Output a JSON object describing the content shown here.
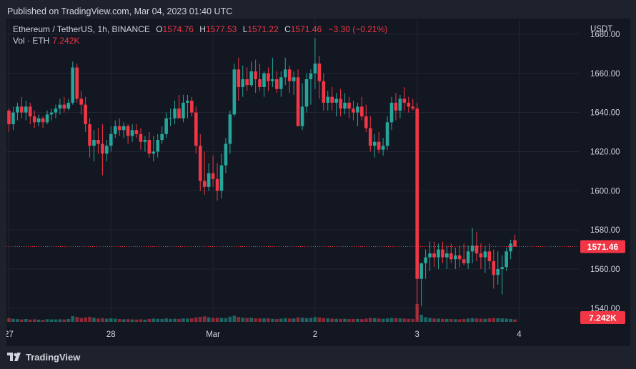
{
  "header": {
    "published": "Published on TradingView.com, Mar 04, 2023 01:40 UTC"
  },
  "legend": {
    "symbol": "Ethereum / TetherUS, 1h, BINANCE",
    "open_key": "O",
    "open": "1574.76",
    "high_key": "H",
    "high": "1577.53",
    "low_key": "L",
    "low": "1571.22",
    "close_key": "C",
    "close": "1571.46",
    "change": "−3.30 (−0.21%)",
    "vol_label": "Vol · ETH",
    "vol_value": "7.242K"
  },
  "footer": {
    "brand": "TradingView"
  },
  "colors": {
    "background": "#131722",
    "up": "#26a69a",
    "down": "#f23645",
    "grid": "#232632",
    "label_price_bg": "#f23645"
  },
  "chart_data": {
    "type": "candlestick",
    "title": "Ethereum / TetherUS, 1h, BINANCE",
    "y_axis_label": "USDT",
    "ylim": [
      1533,
      1688
    ],
    "y_ticks": [
      1540,
      1560,
      1580,
      1600,
      1620,
      1640,
      1660,
      1680
    ],
    "y_tick_labels": [
      "1540.00",
      "1560.00",
      "1580.00",
      "1600.00",
      "1620.00",
      "1640.00",
      "1660.00",
      "1680.00"
    ],
    "x_ticks": [
      {
        "label": "27",
        "index": 0
      },
      {
        "label": "28",
        "index": 24
      },
      {
        "label": "Mar",
        "index": 48
      },
      {
        "label": "2",
        "index": 72
      },
      {
        "label": "3",
        "index": 96
      },
      {
        "label": "4",
        "index": 120
      }
    ],
    "last_price": 1571.46,
    "last_price_label": "1571.46",
    "last_volume_label": "7.242K",
    "grid": true,
    "ohlcv": [
      [
        1641,
        1642,
        1630,
        1634,
        58
      ],
      [
        1634,
        1643,
        1631,
        1640,
        48
      ],
      [
        1640,
        1645,
        1636,
        1643,
        42
      ],
      [
        1643,
        1648,
        1637,
        1640,
        38
      ],
      [
        1640,
        1646,
        1636,
        1643,
        44
      ],
      [
        1643,
        1645,
        1634,
        1638,
        36
      ],
      [
        1638,
        1641,
        1632,
        1635,
        40
      ],
      [
        1635,
        1639,
        1633,
        1637,
        35
      ],
      [
        1637,
        1638,
        1632,
        1635,
        32
      ],
      [
        1635,
        1641,
        1634,
        1639,
        41
      ],
      [
        1639,
        1642,
        1636,
        1640,
        38
      ],
      [
        1640,
        1644,
        1637,
        1642,
        39
      ],
      [
        1642,
        1647,
        1639,
        1644,
        40
      ],
      [
        1644,
        1648,
        1640,
        1642,
        38
      ],
      [
        1642,
        1647,
        1641,
        1645,
        45
      ],
      [
        1645,
        1666,
        1644,
        1663,
        88
      ],
      [
        1663,
        1665,
        1645,
        1647,
        74
      ],
      [
        1647,
        1651,
        1639,
        1644,
        60
      ],
      [
        1644,
        1648,
        1630,
        1634,
        70
      ],
      [
        1634,
        1637,
        1617,
        1623,
        78
      ],
      [
        1623,
        1631,
        1615,
        1626,
        64
      ],
      [
        1626,
        1632,
        1619,
        1624,
        52
      ],
      [
        1624,
        1634,
        1608,
        1619,
        60
      ],
      [
        1619,
        1626,
        1615,
        1623,
        49
      ],
      [
        1623,
        1633,
        1620,
        1629,
        55
      ],
      [
        1629,
        1636,
        1627,
        1633,
        50
      ],
      [
        1633,
        1637,
        1628,
        1631,
        44
      ],
      [
        1631,
        1635,
        1627,
        1633,
        40
      ],
      [
        1633,
        1634,
        1624,
        1628,
        42
      ],
      [
        1628,
        1634,
        1625,
        1631,
        38
      ],
      [
        1631,
        1634,
        1627,
        1629,
        37
      ],
      [
        1629,
        1632,
        1621,
        1625,
        40
      ],
      [
        1625,
        1628,
        1620,
        1626,
        35
      ],
      [
        1626,
        1630,
        1617,
        1619,
        45
      ],
      [
        1619,
        1628,
        1615,
        1620,
        52
      ],
      [
        1620,
        1629,
        1617,
        1626,
        47
      ],
      [
        1626,
        1633,
        1624,
        1629,
        44
      ],
      [
        1629,
        1640,
        1627,
        1637,
        53
      ],
      [
        1637,
        1642,
        1633,
        1637,
        46
      ],
      [
        1637,
        1646,
        1634,
        1642,
        48
      ],
      [
        1642,
        1649,
        1638,
        1637,
        45
      ],
      [
        1637,
        1649,
        1635,
        1645,
        54
      ],
      [
        1645,
        1649,
        1637,
        1646,
        50
      ],
      [
        1646,
        1648,
        1638,
        1640,
        56
      ],
      [
        1640,
        1643,
        1619,
        1623,
        68
      ],
      [
        1623,
        1629,
        1600,
        1605,
        77
      ],
      [
        1605,
        1620,
        1598,
        1602,
        85
      ],
      [
        1602,
        1614,
        1600,
        1609,
        70
      ],
      [
        1609,
        1618,
        1602,
        1606,
        62
      ],
      [
        1606,
        1614,
        1595,
        1600,
        66
      ],
      [
        1600,
        1619,
        1596,
        1613,
        60
      ],
      [
        1613,
        1627,
        1609,
        1624,
        58
      ],
      [
        1624,
        1641,
        1619,
        1639,
        80
      ],
      [
        1639,
        1665,
        1638,
        1662,
        95
      ],
      [
        1662,
        1668,
        1646,
        1653,
        75
      ],
      [
        1653,
        1664,
        1648,
        1657,
        64
      ],
      [
        1657,
        1663,
        1651,
        1654,
        60
      ],
      [
        1654,
        1666,
        1653,
        1661,
        65
      ],
      [
        1661,
        1667,
        1650,
        1657,
        55
      ],
      [
        1657,
        1665,
        1651,
        1653,
        52
      ],
      [
        1653,
        1661,
        1648,
        1660,
        54
      ],
      [
        1660,
        1663,
        1651,
        1656,
        56
      ],
      [
        1656,
        1668,
        1653,
        1657,
        47
      ],
      [
        1657,
        1661,
        1650,
        1652,
        43
      ],
      [
        1652,
        1661,
        1648,
        1658,
        50
      ],
      [
        1658,
        1668,
        1654,
        1662,
        57
      ],
      [
        1662,
        1664,
        1650,
        1656,
        52
      ],
      [
        1656,
        1661,
        1649,
        1658,
        53
      ],
      [
        1658,
        1662,
        1647,
        1633,
        70
      ],
      [
        1633,
        1655,
        1631,
        1643,
        63
      ],
      [
        1643,
        1660,
        1640,
        1657,
        58
      ],
      [
        1657,
        1662,
        1644,
        1660,
        60
      ],
      [
        1660,
        1678,
        1652,
        1665,
        74
      ],
      [
        1665,
        1669,
        1647,
        1656,
        68
      ],
      [
        1656,
        1660,
        1641,
        1645,
        60
      ],
      [
        1645,
        1651,
        1641,
        1648,
        55
      ],
      [
        1648,
        1653,
        1641,
        1645,
        50
      ],
      [
        1645,
        1650,
        1638,
        1647,
        47
      ],
      [
        1647,
        1652,
        1638,
        1642,
        46
      ],
      [
        1642,
        1650,
        1639,
        1645,
        48
      ],
      [
        1645,
        1648,
        1637,
        1642,
        43
      ],
      [
        1642,
        1646,
        1636,
        1640,
        45
      ],
      [
        1640,
        1645,
        1633,
        1643,
        46
      ],
      [
        1643,
        1648,
        1636,
        1638,
        43
      ],
      [
        1638,
        1644,
        1630,
        1632,
        50
      ],
      [
        1632,
        1638,
        1620,
        1623,
        63
      ],
      [
        1623,
        1629,
        1617,
        1625,
        57
      ],
      [
        1625,
        1630,
        1619,
        1621,
        52
      ],
      [
        1621,
        1627,
        1618,
        1623,
        48
      ],
      [
        1623,
        1638,
        1621,
        1635,
        53
      ],
      [
        1635,
        1648,
        1631,
        1645,
        60
      ],
      [
        1645,
        1650,
        1636,
        1641,
        57
      ],
      [
        1641,
        1649,
        1637,
        1647,
        54
      ],
      [
        1647,
        1653,
        1641,
        1645,
        52
      ],
      [
        1645,
        1648,
        1640,
        1643,
        48
      ],
      [
        1643,
        1647,
        1641,
        1642,
        45
      ],
      [
        1642,
        1645,
        1534,
        1555,
        275
      ],
      [
        1555,
        1563,
        1541,
        1563,
        110
      ],
      [
        1563,
        1570,
        1555,
        1566,
        72
      ],
      [
        1566,
        1574,
        1559,
        1568,
        60
      ],
      [
        1568,
        1574,
        1561,
        1566,
        52
      ],
      [
        1566,
        1573,
        1560,
        1570,
        50
      ],
      [
        1570,
        1574,
        1563,
        1566,
        47
      ],
      [
        1566,
        1572,
        1560,
        1568,
        45
      ],
      [
        1568,
        1573,
        1563,
        1565,
        43
      ],
      [
        1565,
        1571,
        1560,
        1567,
        42
      ],
      [
        1567,
        1572,
        1561,
        1565,
        40
      ],
      [
        1565,
        1573,
        1562,
        1563,
        44
      ],
      [
        1563,
        1572,
        1560,
        1569,
        52
      ],
      [
        1569,
        1581,
        1563,
        1572,
        58
      ],
      [
        1572,
        1579,
        1564,
        1568,
        52
      ],
      [
        1568,
        1573,
        1560,
        1566,
        50
      ],
      [
        1566,
        1572,
        1558,
        1569,
        48
      ],
      [
        1569,
        1573,
        1560,
        1564,
        55
      ],
      [
        1564,
        1570,
        1550,
        1557,
        60
      ],
      [
        1557,
        1569,
        1552,
        1560,
        57
      ],
      [
        1560,
        1567,
        1547,
        1561,
        53
      ],
      [
        1561,
        1571,
        1559,
        1569,
        50
      ],
      [
        1569,
        1575,
        1565,
        1573,
        45
      ],
      [
        1574.76,
        1577.53,
        1571.22,
        1571.46,
        38
      ]
    ]
  }
}
